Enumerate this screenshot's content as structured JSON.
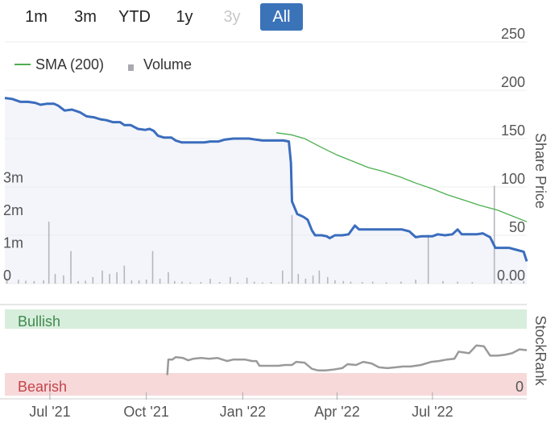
{
  "range_buttons": [
    {
      "label": "1m",
      "state": "normal"
    },
    {
      "label": "3m",
      "state": "normal"
    },
    {
      "label": "YTD",
      "state": "normal"
    },
    {
      "label": "1y",
      "state": "normal"
    },
    {
      "label": "3y",
      "state": "disabled"
    },
    {
      "label": "All",
      "state": "active"
    }
  ],
  "legend": [
    {
      "label": "SMA (200)",
      "color": "#4caf50",
      "icon": "line-swatch"
    },
    {
      "label": "Volume",
      "color": "#a9a9b0",
      "icon": "square-swatch"
    }
  ],
  "colors": {
    "price_line": "#3a6dbd",
    "price_fill": "#f3f5fb",
    "sma_line": "#4caf50",
    "volume_bar": "#b6b6bc",
    "stockrank_line": "#9a9a9a",
    "bullish_bg": "#d8eedd",
    "bullish_text": "#3f8a4d",
    "bearish_bg": "#f7d9da",
    "bearish_text": "#c1454b",
    "accent": "#3b73b9"
  },
  "chart_data": {
    "type": "line",
    "x_range": [
      "2021-05-19",
      "2022-09-29"
    ],
    "x_ticks": [
      {
        "date": "2021-07-01",
        "label": "Jul '21"
      },
      {
        "date": "2021-10-01",
        "label": "Oct '21"
      },
      {
        "date": "2022-01-01",
        "label": "Jan '22"
      },
      {
        "date": "2022-04-01",
        "label": "Apr '22"
      },
      {
        "date": "2022-07-01",
        "label": "Jul '22"
      }
    ],
    "price_axis": {
      "label": "Share Price",
      "range": [
        0,
        250
      ],
      "ticks": [
        {
          "value": 0,
          "label": "0.00"
        },
        {
          "value": 50,
          "label": "50"
        },
        {
          "value": 100,
          "label": "100"
        },
        {
          "value": 150,
          "label": "150"
        },
        {
          "value": 200,
          "label": "200"
        },
        {
          "value": 250,
          "label": "250"
        }
      ]
    },
    "volume_axis": {
      "range": [
        0,
        4000000
      ],
      "ticks": [
        {
          "value": 0,
          "label": "0"
        },
        {
          "value": 1000000,
          "label": "1m"
        },
        {
          "value": 2000000,
          "label": "2m"
        },
        {
          "value": 3000000,
          "label": "3m"
        }
      ]
    },
    "series": [
      {
        "name": "Share Price",
        "points": [
          [
            "2021-05-19",
            192
          ],
          [
            "2021-05-26",
            191
          ],
          [
            "2021-06-03",
            188
          ],
          [
            "2021-06-10",
            188
          ],
          [
            "2021-06-17",
            187
          ],
          [
            "2021-06-22",
            185
          ],
          [
            "2021-06-28",
            186
          ],
          [
            "2021-07-05",
            186
          ],
          [
            "2021-07-09",
            184
          ],
          [
            "2021-07-15",
            179
          ],
          [
            "2021-07-22",
            180
          ],
          [
            "2021-07-30",
            177
          ],
          [
            "2021-08-05",
            173
          ],
          [
            "2021-08-12",
            172
          ],
          [
            "2021-08-18",
            170
          ],
          [
            "2021-08-24",
            169
          ],
          [
            "2021-08-30",
            167
          ],
          [
            "2021-09-06",
            167
          ],
          [
            "2021-09-10",
            164
          ],
          [
            "2021-09-16",
            164
          ],
          [
            "2021-09-23",
            160
          ],
          [
            "2021-09-30",
            159
          ],
          [
            "2021-10-04",
            160
          ],
          [
            "2021-10-08",
            158
          ],
          [
            "2021-10-12",
            153
          ],
          [
            "2021-10-18",
            151
          ],
          [
            "2021-10-25",
            151
          ],
          [
            "2021-10-29",
            148
          ],
          [
            "2021-11-04",
            146
          ],
          [
            "2021-11-11",
            146
          ],
          [
            "2021-11-18",
            146
          ],
          [
            "2021-11-25",
            146
          ],
          [
            "2021-12-01",
            147
          ],
          [
            "2021-12-09",
            147
          ],
          [
            "2021-12-15",
            149
          ],
          [
            "2021-12-23",
            150
          ],
          [
            "2021-12-30",
            150
          ],
          [
            "2022-01-07",
            150
          ],
          [
            "2022-01-13",
            149
          ],
          [
            "2022-01-20",
            148
          ],
          [
            "2022-01-27",
            148
          ],
          [
            "2022-02-03",
            148
          ],
          [
            "2022-02-09",
            148
          ],
          [
            "2022-02-14",
            147
          ],
          [
            "2022-02-16",
            125
          ],
          [
            "2022-02-17",
            85
          ],
          [
            "2022-02-22",
            72
          ],
          [
            "2022-02-28",
            69
          ],
          [
            "2022-03-04",
            66
          ],
          [
            "2022-03-08",
            55
          ],
          [
            "2022-03-11",
            50
          ],
          [
            "2022-03-17",
            50
          ],
          [
            "2022-03-22",
            49
          ],
          [
            "2022-03-25",
            47
          ],
          [
            "2022-03-30",
            50
          ],
          [
            "2022-04-06",
            50
          ],
          [
            "2022-04-12",
            51
          ],
          [
            "2022-04-18",
            60
          ],
          [
            "2022-04-22",
            56
          ],
          [
            "2022-04-28",
            56
          ],
          [
            "2022-05-05",
            56
          ],
          [
            "2022-05-12",
            56
          ],
          [
            "2022-05-19",
            56
          ],
          [
            "2022-05-26",
            56
          ],
          [
            "2022-06-02",
            56
          ],
          [
            "2022-06-09",
            54
          ],
          [
            "2022-06-15",
            48
          ],
          [
            "2022-06-21",
            49
          ],
          [
            "2022-06-27",
            49
          ],
          [
            "2022-07-01",
            49
          ],
          [
            "2022-07-06",
            51
          ],
          [
            "2022-07-13",
            50
          ],
          [
            "2022-07-20",
            51
          ],
          [
            "2022-07-25",
            56
          ],
          [
            "2022-07-29",
            51
          ],
          [
            "2022-08-05",
            51
          ],
          [
            "2022-08-12",
            51
          ],
          [
            "2022-08-18",
            52
          ],
          [
            "2022-08-25",
            48
          ],
          [
            "2022-08-30",
            37
          ],
          [
            "2022-09-05",
            37
          ],
          [
            "2022-09-12",
            37
          ],
          [
            "2022-09-19",
            35
          ],
          [
            "2022-09-26",
            33
          ],
          [
            "2022-09-29",
            23
          ]
        ]
      },
      {
        "name": "SMA (200)",
        "points": [
          [
            "2022-02-02",
            156
          ],
          [
            "2022-02-16",
            154
          ],
          [
            "2022-03-01",
            150
          ],
          [
            "2022-03-15",
            142
          ],
          [
            "2022-04-01",
            133
          ],
          [
            "2022-04-15",
            127
          ],
          [
            "2022-05-01",
            120
          ],
          [
            "2022-05-15",
            116
          ],
          [
            "2022-06-01",
            110
          ],
          [
            "2022-06-15",
            104
          ],
          [
            "2022-07-01",
            98
          ],
          [
            "2022-07-15",
            92
          ],
          [
            "2022-08-01",
            86
          ],
          [
            "2022-08-15",
            81
          ],
          [
            "2022-09-01",
            76
          ],
          [
            "2022-09-15",
            70
          ],
          [
            "2022-09-29",
            64
          ]
        ]
      },
      {
        "name": "Volume",
        "points": [
          [
            "2021-05-21",
            150000
          ],
          [
            "2021-06-01",
            120000
          ],
          [
            "2021-06-08",
            90000
          ],
          [
            "2021-06-16",
            80000
          ],
          [
            "2021-06-25",
            100000
          ],
          [
            "2021-06-30",
            1900000
          ],
          [
            "2021-07-06",
            300000
          ],
          [
            "2021-07-14",
            250000
          ],
          [
            "2021-07-21",
            1000000
          ],
          [
            "2021-07-28",
            80000
          ],
          [
            "2021-08-04",
            90000
          ],
          [
            "2021-08-11",
            200000
          ],
          [
            "2021-08-20",
            400000
          ],
          [
            "2021-08-27",
            300000
          ],
          [
            "2021-09-03",
            350000
          ],
          [
            "2021-09-10",
            550000
          ],
          [
            "2021-09-17",
            100000
          ],
          [
            "2021-09-24",
            100000
          ],
          [
            "2021-10-01",
            120000
          ],
          [
            "2021-10-07",
            1000000
          ],
          [
            "2021-10-14",
            150000
          ],
          [
            "2021-10-22",
            350000
          ],
          [
            "2021-10-28",
            80000
          ],
          [
            "2021-11-04",
            60000
          ],
          [
            "2021-11-12",
            40000
          ],
          [
            "2021-11-22",
            50000
          ],
          [
            "2021-12-01",
            150000
          ],
          [
            "2021-12-10",
            50000
          ],
          [
            "2021-12-20",
            200000
          ],
          [
            "2021-12-27",
            40000
          ],
          [
            "2022-01-05",
            180000
          ],
          [
            "2022-01-12",
            60000
          ],
          [
            "2022-01-20",
            40000
          ],
          [
            "2022-01-28",
            50000
          ],
          [
            "2022-02-08",
            400000
          ],
          [
            "2022-02-14",
            60000
          ],
          [
            "2022-02-17",
            2100000
          ],
          [
            "2022-02-23",
            300000
          ],
          [
            "2022-03-02",
            150000
          ],
          [
            "2022-03-09",
            250000
          ],
          [
            "2022-03-15",
            400000
          ],
          [
            "2022-03-23",
            200000
          ],
          [
            "2022-03-30",
            100000
          ],
          [
            "2022-04-07",
            80000
          ],
          [
            "2022-04-14",
            60000
          ],
          [
            "2022-04-25",
            50000
          ],
          [
            "2022-05-05",
            60000
          ],
          [
            "2022-05-18",
            40000
          ],
          [
            "2022-06-01",
            60000
          ],
          [
            "2022-06-15",
            120000
          ],
          [
            "2022-06-27",
            1500000
          ],
          [
            "2022-07-11",
            80000
          ],
          [
            "2022-07-25",
            60000
          ],
          [
            "2022-08-08",
            50000
          ],
          [
            "2022-08-29",
            3000000
          ],
          [
            "2022-09-05",
            150000
          ],
          [
            "2022-09-14",
            60000
          ],
          [
            "2022-09-26",
            80000
          ]
        ]
      },
      {
        "name": "StockRank",
        "points": [
          [
            "2021-10-21",
            20
          ],
          [
            "2021-10-22",
            40
          ],
          [
            "2021-10-26",
            40
          ],
          [
            "2021-10-29",
            43
          ],
          [
            "2021-11-05",
            42
          ],
          [
            "2021-11-10",
            39
          ],
          [
            "2021-11-15",
            41
          ],
          [
            "2021-11-22",
            42
          ],
          [
            "2021-11-30",
            41
          ],
          [
            "2021-12-08",
            42
          ],
          [
            "2021-12-17",
            38
          ],
          [
            "2021-12-23",
            40
          ],
          [
            "2022-01-03",
            40
          ],
          [
            "2022-01-10",
            38
          ],
          [
            "2022-01-14",
            38
          ],
          [
            "2022-01-17",
            32
          ],
          [
            "2022-01-25",
            32
          ],
          [
            "2022-02-04",
            32
          ],
          [
            "2022-02-10",
            33
          ],
          [
            "2022-02-17",
            33
          ],
          [
            "2022-02-21",
            37
          ],
          [
            "2022-03-01",
            36
          ],
          [
            "2022-03-08",
            28
          ],
          [
            "2022-03-14",
            26
          ],
          [
            "2022-03-21",
            26
          ],
          [
            "2022-03-28",
            27
          ],
          [
            "2022-04-06",
            29
          ],
          [
            "2022-04-11",
            34
          ],
          [
            "2022-04-19",
            33
          ],
          [
            "2022-04-26",
            37
          ],
          [
            "2022-05-04",
            35
          ],
          [
            "2022-05-11",
            30
          ],
          [
            "2022-05-19",
            29
          ],
          [
            "2022-05-27",
            30
          ],
          [
            "2022-06-03",
            31
          ],
          [
            "2022-06-10",
            31
          ],
          [
            "2022-06-20",
            33
          ],
          [
            "2022-06-30",
            37
          ],
          [
            "2022-07-07",
            38
          ],
          [
            "2022-07-15",
            40
          ],
          [
            "2022-07-22",
            41
          ],
          [
            "2022-07-26",
            50
          ],
          [
            "2022-08-05",
            48
          ],
          [
            "2022-08-12",
            58
          ],
          [
            "2022-08-19",
            57
          ],
          [
            "2022-08-25",
            45
          ],
          [
            "2022-09-01",
            45
          ],
          [
            "2022-09-08",
            46
          ],
          [
            "2022-09-15",
            48
          ],
          [
            "2022-09-22",
            53
          ],
          [
            "2022-09-29",
            52
          ]
        ]
      }
    ],
    "stockrank_panel": {
      "axis_label": "StockRank",
      "range": [
        0,
        100
      ],
      "zero_label": "0",
      "bullish_label": "Bullish",
      "bearish_label": "Bearish"
    }
  }
}
